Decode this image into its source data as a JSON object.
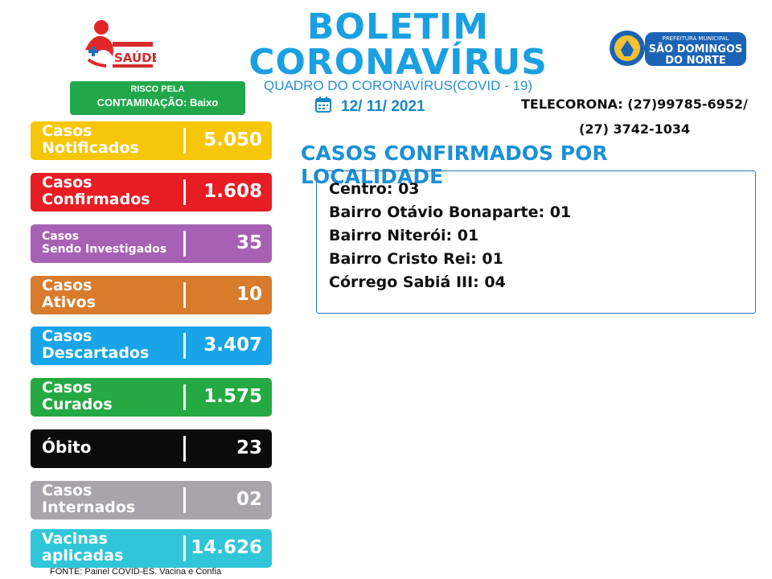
{
  "header": {
    "title_line1": "BOLETIM",
    "title_line2": "CORONAVÍRUS",
    "subtitle": "QUADRO DO CORONAVÍRUS(COVID - 19)",
    "date": "12/ 11/ 2021",
    "telecorona_line1": "TELECORONA: (27)99785-6952/",
    "telecorona_line2": "(27) 3742-1034"
  },
  "logos": {
    "saude_text": "SAÚDE",
    "prefeitura_line1": "PREFEITURA MUNICIPAL",
    "prefeitura_line2": "SÃO DOMINGOS",
    "prefeitura_line3": "DO NORTE"
  },
  "risk": {
    "line1": "RISCO PELA",
    "line2": "CONTAMINAÇÃO: Baixo"
  },
  "stats": [
    {
      "label1": "Casos",
      "label2": "Notificados",
      "value": "5.050",
      "color": "#f6c608"
    },
    {
      "label1": "Casos",
      "label2": "Confirmados",
      "value": "1.608",
      "color": "#e81d24"
    },
    {
      "label1": "Casos",
      "label2": "Sendo Investigados",
      "value": "35",
      "color": "#a761b4"
    },
    {
      "label1": "Casos",
      "label2": "Ativos",
      "value": "10",
      "color": "#d87b2d"
    },
    {
      "label1": "Casos",
      "label2": "Descartados",
      "value": "3.407",
      "color": "#18a4e6"
    },
    {
      "label1": "Casos",
      "label2": "Curados",
      "value": "1.575",
      "color": "#25a942"
    },
    {
      "label1": "Óbito",
      "value": "23",
      "color": "#0b0b0b"
    },
    {
      "label1": "Casos",
      "label2": "Internados",
      "value": "02",
      "color": "#a7a4ab"
    },
    {
      "label1": "Vacinas",
      "label2": "aplicadas",
      "value": "14.626",
      "color": "#30c6d8"
    }
  ],
  "footer": {
    "source": "FONTE: Painel COVID-ES. Vacina e Confia"
  },
  "localities": {
    "title": "CASOS CONFIRMADOS POR LOCALIDADE",
    "items": [
      "Centro: 03",
      "Bairro Otávio Bonaparte: 01",
      "Bairro Niterói: 01",
      "Bairro Cristo Rei: 01",
      "Córrego Sabiá III: 04"
    ]
  }
}
